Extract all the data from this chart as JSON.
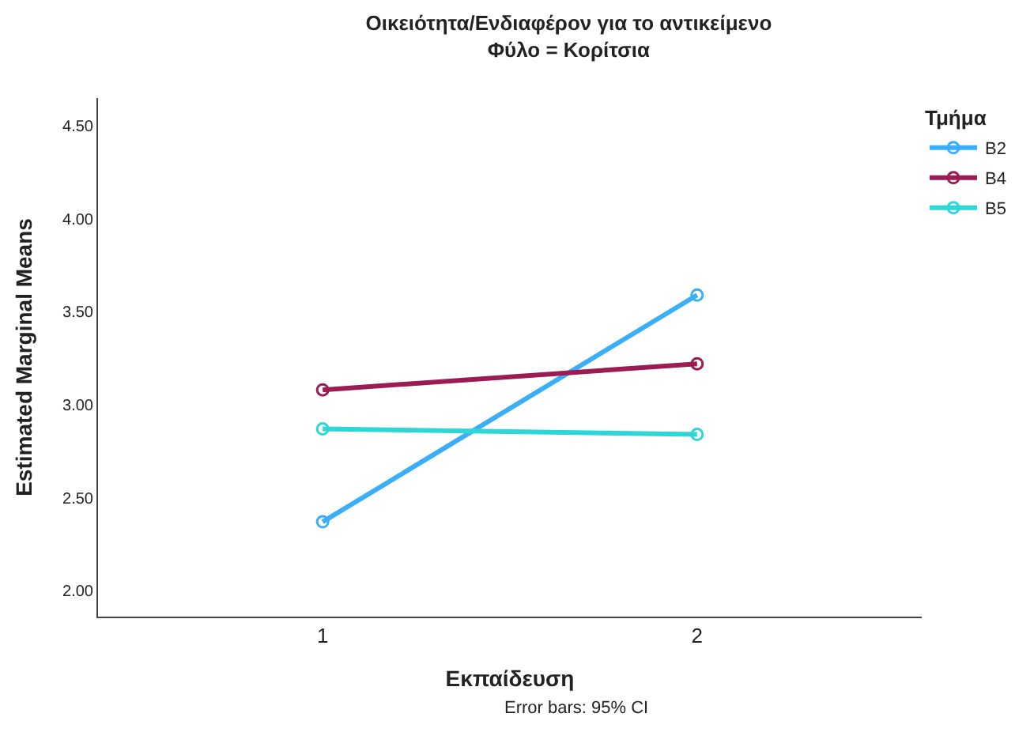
{
  "chart_data": {
    "type": "line",
    "title": "Οικειότητα/Ενδιαφέρον για το αντικείμενο",
    "subtitle": "Φύλο = Κορίτσια",
    "xlabel": "Εκπαίδευση",
    "ylabel": "Estimated Marginal Means",
    "legend_title": "Τμήμα",
    "categories": [
      "1",
      "2"
    ],
    "series": [
      {
        "name": "B2",
        "color": "#3aaef7",
        "values": [
          2.37,
          3.59
        ]
      },
      {
        "name": "B4",
        "color": "#9b1b53",
        "values": [
          3.08,
          3.22
        ]
      },
      {
        "name": "B5",
        "color": "#2fd6d6",
        "values": [
          2.87,
          2.84
        ]
      }
    ],
    "ylim": [
      1.86,
      4.65
    ],
    "yticks": [
      {
        "value": 2,
        "label": "2.00"
      },
      {
        "value": 2.5,
        "label": "2.50"
      },
      {
        "value": 3,
        "label": "3.00"
      },
      {
        "value": 3.5,
        "label": "3.50"
      },
      {
        "value": 4,
        "label": "4.00"
      },
      {
        "value": 4.5,
        "label": "4.50"
      }
    ],
    "annotations": [
      "Error bars: 95% CI"
    ],
    "legend": "top right",
    "marker": "circle",
    "line_style": "solid"
  }
}
